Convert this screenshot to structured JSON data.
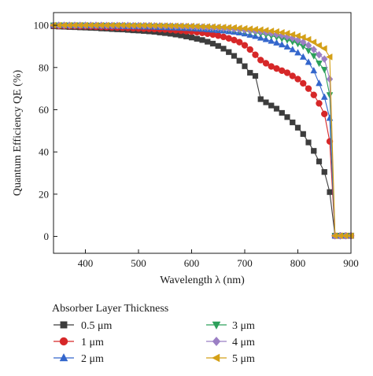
{
  "chart_data": {
    "type": "line",
    "title": "",
    "xlabel": "Wavelength λ (nm)",
    "ylabel": "Quantum Efficiency QE (%)",
    "xlim": [
      340,
      900
    ],
    "ylim": [
      -8,
      106
    ],
    "xticks": [
      400,
      500,
      600,
      700,
      800,
      900
    ],
    "yticks": [
      0,
      20,
      40,
      60,
      80,
      100
    ],
    "grid": false,
    "legend_title": "Absorber Layer Thickness",
    "legend_position": "bottom",
    "series": [
      {
        "name": "0.5 μm",
        "color": "#3d3d3d",
        "marker": "square",
        "x": [
          340,
          350,
          360,
          370,
          380,
          390,
          400,
          410,
          420,
          430,
          440,
          450,
          460,
          470,
          480,
          490,
          500,
          510,
          520,
          530,
          540,
          550,
          560,
          570,
          580,
          590,
          600,
          610,
          620,
          630,
          640,
          650,
          660,
          670,
          680,
          690,
          700,
          710,
          720,
          730,
          740,
          750,
          760,
          770,
          780,
          790,
          800,
          810,
          820,
          830,
          840,
          850,
          860,
          870,
          880,
          890,
          900
        ],
        "y": [
          99.5,
          99.4,
          99.3,
          99.2,
          99.1,
          99.0,
          98.9,
          98.8,
          98.7,
          98.5,
          98.4,
          98.2,
          98.1,
          98.0,
          97.8,
          97.6,
          97.5,
          97.3,
          97.1,
          96.9,
          96.6,
          96.3,
          96.0,
          95.6,
          95.2,
          94.7,
          94.2,
          93.6,
          93.0,
          92.2,
          91.3,
          90.2,
          88.9,
          87.3,
          85.5,
          83.2,
          80.6,
          77.5,
          76.0,
          65.0,
          63.5,
          62.0,
          60.5,
          58.5,
          56.5,
          54.0,
          51.5,
          48.5,
          44.5,
          40.5,
          35.5,
          30.5,
          21.0,
          0.3,
          0.3,
          0.3,
          0.3
        ]
      },
      {
        "name": "1 μm",
        "color": "#d62728",
        "marker": "circle",
        "x": [
          340,
          350,
          360,
          370,
          380,
          390,
          400,
          410,
          420,
          430,
          440,
          450,
          460,
          470,
          480,
          490,
          500,
          510,
          520,
          530,
          540,
          550,
          560,
          570,
          580,
          590,
          600,
          610,
          620,
          630,
          640,
          650,
          660,
          670,
          680,
          690,
          700,
          710,
          720,
          730,
          740,
          750,
          760,
          770,
          780,
          790,
          800,
          810,
          820,
          830,
          840,
          850,
          860,
          870,
          880,
          890,
          900
        ],
        "y": [
          99.8,
          99.7,
          99.7,
          99.6,
          99.6,
          99.5,
          99.5,
          99.4,
          99.3,
          99.2,
          99.1,
          99.0,
          98.9,
          98.8,
          98.7,
          98.6,
          98.5,
          98.4,
          98.3,
          98.2,
          98.1,
          98.0,
          97.8,
          97.6,
          97.4,
          97.2,
          97.0,
          96.7,
          96.4,
          96.0,
          95.6,
          95.1,
          94.5,
          93.8,
          93.0,
          92.0,
          90.5,
          88.5,
          86.0,
          83.5,
          82.0,
          80.5,
          79.5,
          78.5,
          77.5,
          76.0,
          74.5,
          72.5,
          70.0,
          67.0,
          63.0,
          58.0,
          45.0,
          0.3,
          0.3,
          0.3,
          0.3
        ]
      },
      {
        "name": "2 μm",
        "color": "#3366cc",
        "marker": "triangle-up",
        "x": [
          340,
          350,
          360,
          370,
          380,
          390,
          400,
          410,
          420,
          430,
          440,
          450,
          460,
          470,
          480,
          490,
          500,
          510,
          520,
          530,
          540,
          550,
          560,
          570,
          580,
          590,
          600,
          610,
          620,
          630,
          640,
          650,
          660,
          670,
          680,
          690,
          700,
          710,
          720,
          730,
          740,
          750,
          760,
          770,
          780,
          790,
          800,
          810,
          820,
          830,
          840,
          850,
          860,
          870,
          880,
          890,
          900
        ],
        "y": [
          100,
          100,
          100,
          99.9,
          99.9,
          99.9,
          99.8,
          99.8,
          99.8,
          99.7,
          99.7,
          99.6,
          99.6,
          99.5,
          99.5,
          99.4,
          99.4,
          99.3,
          99.3,
          99.2,
          99.1,
          99.0,
          98.9,
          98.8,
          98.7,
          98.6,
          98.5,
          98.3,
          98.2,
          98.0,
          97.8,
          97.6,
          97.4,
          97.1,
          96.8,
          96.5,
          96.0,
          95.4,
          94.8,
          94.0,
          93.3,
          92.5,
          91.7,
          90.8,
          89.8,
          88.5,
          87.0,
          85.0,
          82.5,
          78.5,
          72.5,
          66.0,
          56.0,
          0.3,
          0.3,
          0.3,
          0.3
        ]
      },
      {
        "name": "3 μm",
        "color": "#2ca05a",
        "marker": "triangle-down",
        "x": [
          340,
          350,
          360,
          370,
          380,
          390,
          400,
          410,
          420,
          430,
          440,
          450,
          460,
          470,
          480,
          490,
          500,
          510,
          520,
          530,
          540,
          550,
          560,
          570,
          580,
          590,
          600,
          610,
          620,
          630,
          640,
          650,
          660,
          670,
          680,
          690,
          700,
          710,
          720,
          730,
          740,
          750,
          760,
          770,
          780,
          790,
          800,
          810,
          820,
          830,
          840,
          850,
          860,
          870,
          880,
          890,
          900
        ],
        "y": [
          100,
          100,
          100,
          100,
          100,
          100,
          100,
          99.9,
          99.9,
          99.9,
          99.9,
          99.8,
          99.8,
          99.8,
          99.7,
          99.7,
          99.7,
          99.6,
          99.6,
          99.5,
          99.5,
          99.4,
          99.4,
          99.3,
          99.2,
          99.1,
          99.0,
          98.9,
          98.8,
          98.7,
          98.5,
          98.4,
          98.2,
          98.0,
          97.8,
          97.5,
          97.2,
          96.9,
          96.5,
          96.0,
          95.5,
          95.0,
          94.4,
          93.7,
          93.0,
          92.2,
          91.3,
          90.0,
          88.0,
          85.5,
          82.0,
          79.0,
          67.0,
          0.3,
          0.3,
          0.3,
          0.3
        ]
      },
      {
        "name": "4 μm",
        "color": "#9b7fc4",
        "marker": "diamond",
        "x": [
          340,
          350,
          360,
          370,
          380,
          390,
          400,
          410,
          420,
          430,
          440,
          450,
          460,
          470,
          480,
          490,
          500,
          510,
          520,
          530,
          540,
          550,
          560,
          570,
          580,
          590,
          600,
          610,
          620,
          630,
          640,
          650,
          660,
          670,
          680,
          690,
          700,
          710,
          720,
          730,
          740,
          750,
          760,
          770,
          780,
          790,
          800,
          810,
          820,
          830,
          840,
          850,
          860,
          870,
          880,
          890,
          900
        ],
        "y": [
          100,
          100,
          100,
          100,
          100,
          100,
          100,
          100,
          100,
          100,
          99.9,
          99.9,
          99.9,
          99.9,
          99.9,
          99.8,
          99.8,
          99.8,
          99.8,
          99.7,
          99.7,
          99.6,
          99.6,
          99.5,
          99.5,
          99.4,
          99.3,
          99.2,
          99.1,
          99.0,
          98.9,
          98.8,
          98.6,
          98.5,
          98.3,
          98.1,
          97.8,
          97.6,
          97.3,
          97.0,
          96.6,
          96.2,
          95.7,
          95.2,
          94.6,
          93.9,
          93.0,
          92.0,
          90.5,
          88.5,
          86.0,
          84.0,
          74.5,
          0.3,
          0.3,
          0.3,
          0.3
        ]
      },
      {
        "name": "5 μm",
        "color": "#d4a017",
        "marker": "triangle-left",
        "x": [
          340,
          350,
          360,
          370,
          380,
          390,
          400,
          410,
          420,
          430,
          440,
          450,
          460,
          470,
          480,
          490,
          500,
          510,
          520,
          530,
          540,
          550,
          560,
          570,
          580,
          590,
          600,
          610,
          620,
          630,
          640,
          650,
          660,
          670,
          680,
          690,
          700,
          710,
          720,
          730,
          740,
          750,
          760,
          770,
          780,
          790,
          800,
          810,
          820,
          830,
          840,
          850,
          860,
          870,
          880,
          890,
          900
        ],
        "y": [
          100,
          100,
          100,
          100,
          100,
          100,
          100,
          100,
          100,
          100,
          100,
          100,
          100,
          100,
          99.9,
          99.9,
          99.9,
          99.9,
          99.9,
          99.8,
          99.8,
          99.8,
          99.7,
          99.7,
          99.7,
          99.6,
          99.6,
          99.5,
          99.4,
          99.4,
          99.3,
          99.2,
          99.1,
          99.0,
          98.9,
          98.7,
          98.5,
          98.3,
          98.1,
          97.9,
          97.6,
          97.3,
          97.0,
          96.6,
          96.2,
          95.6,
          95.0,
          94.3,
          93.3,
          92.0,
          90.5,
          89.0,
          85.0,
          0.3,
          0.3,
          0.3,
          0.3
        ]
      }
    ]
  }
}
